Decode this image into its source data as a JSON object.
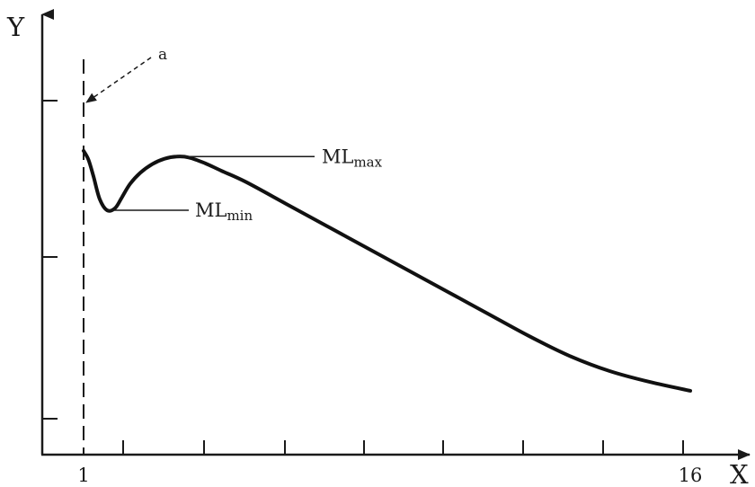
{
  "chart_data": {
    "type": "line",
    "xlabel": "X",
    "ylabel": "Y",
    "xlim": [
      1,
      16
    ],
    "x_tick_labels": [
      "1",
      "16"
    ],
    "marker_label": "a",
    "series": [
      {
        "x": [
          1.0,
          1.12,
          1.25,
          1.4,
          1.58,
          1.78,
          1.95,
          2.15,
          2.4,
          2.7,
          3.0,
          3.3,
          3.6,
          4.0,
          4.4,
          5.0,
          6.0,
          7.0,
          8.0,
          9.0,
          10.0,
          11.0,
          12.0,
          13.0,
          14.0,
          15.0,
          16.0
        ],
        "y": [
          0.69,
          0.67,
          0.63,
          0.58,
          0.555,
          0.56,
          0.585,
          0.615,
          0.64,
          0.66,
          0.672,
          0.677,
          0.675,
          0.662,
          0.645,
          0.62,
          0.57,
          0.52,
          0.47,
          0.42,
          0.37,
          0.32,
          0.27,
          0.225,
          0.19,
          0.165,
          0.145
        ]
      }
    ],
    "annotations": {
      "ml_max": {
        "label": "ML",
        "sub": "max",
        "x": 3.3,
        "y": 0.677
      },
      "ml_min": {
        "label": "ML",
        "sub": "min",
        "x": 1.58,
        "y": 0.555
      }
    }
  }
}
